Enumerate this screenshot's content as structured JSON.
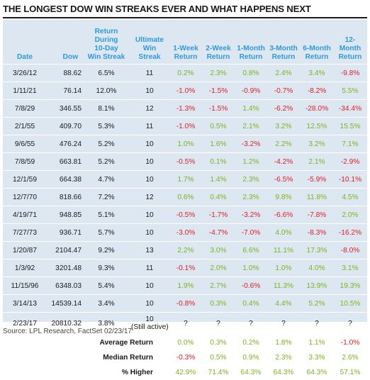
{
  "title": "THE LONGEST DOW WIN STREAKS EVER AND WHAT HAPPENS NEXT",
  "headers": {
    "date": "Date",
    "dow": "Dow",
    "return_during": [
      "Return",
      "During",
      "10-Day",
      "Win Streak"
    ],
    "ultimate": [
      "Ultimate",
      "Win",
      "Streak"
    ],
    "w1": [
      "1-Week",
      "Return"
    ],
    "w2": [
      "2-Week",
      "Return"
    ],
    "m1": [
      "1-Month",
      "Return"
    ],
    "m3": [
      "3-Month",
      "Return"
    ],
    "m6": [
      "6-Month",
      "Return"
    ],
    "m12": [
      "12-Month",
      "Return"
    ]
  },
  "rows": [
    {
      "date": "3/26/12",
      "dow": "88.62",
      "ret": "6.5%",
      "streak": "11",
      "w1": "0.2%",
      "w2": "2.3%",
      "m1": "0.8%",
      "m3": "2.4%",
      "m6": "3.4%",
      "m12": "-9.8%"
    },
    {
      "date": "1/11/21",
      "dow": "76.14",
      "ret": "12.0%",
      "streak": "10",
      "w1": "-1.0%",
      "w2": "-1.5%",
      "m1": "-0.9%",
      "m3": "-0.7%",
      "m6": "-8.2%",
      "m12": "5.5%"
    },
    {
      "date": "7/8/29",
      "dow": "346.55",
      "ret": "8.1%",
      "streak": "12",
      "w1": "-1.3%",
      "w2": "-1.5%",
      "m1": "1.4%",
      "m3": "-6.2%",
      "m6": "-28.0%",
      "m12": "-34.4%"
    },
    {
      "date": "2/1/55",
      "dow": "409.70",
      "ret": "5.3%",
      "streak": "11",
      "w1": "-1.0%",
      "w2": "0.5%",
      "m1": "2.1%",
      "m3": "3.2%",
      "m6": "12.5%",
      "m12": "15.5%"
    },
    {
      "date": "9/6/55",
      "dow": "476.24",
      "ret": "5.2%",
      "streak": "10",
      "w1": "1.0%",
      "w2": "1.6%",
      "m1": "-3.2%",
      "m3": "2.2%",
      "m6": "3.2%",
      "m12": "7.1%"
    },
    {
      "date": "7/8/59",
      "dow": "663.81",
      "ret": "5.2%",
      "streak": "10",
      "w1": "-0.5%",
      "w2": "0.1%",
      "m1": "1.2%",
      "m3": "-4.2%",
      "m6": "2.1%",
      "m12": "-2.9%"
    },
    {
      "date": "12/1/59",
      "dow": "664.38",
      "ret": "4.7%",
      "streak": "10",
      "w1": "1.7%",
      "w2": "1.4%",
      "m1": "2.3%",
      "m3": "-6.5%",
      "m6": "-5.9%",
      "m12": "-10.1%"
    },
    {
      "date": "12/7/70",
      "dow": "818.66",
      "ret": "7.2%",
      "streak": "12",
      "w1": "0.6%",
      "w2": "0.4%",
      "m1": "2.3%",
      "m3": "9.8%",
      "m6": "11.8%",
      "m12": "4.5%"
    },
    {
      "date": "4/19/71",
      "dow": "948.85",
      "ret": "5.1%",
      "streak": "10",
      "w1": "-0.5%",
      "w2": "-1.7%",
      "m1": "-3.2%",
      "m3": "-6.6%",
      "m6": "-7.8%",
      "m12": "2.0%"
    },
    {
      "date": "7/27/73",
      "dow": "936.71",
      "ret": "5.7%",
      "streak": "10",
      "w1": "-3.0%",
      "w2": "-4.7%",
      "m1": "-7.0%",
      "m3": "4.0%",
      "m6": "-8.3%",
      "m12": "-16.2%"
    },
    {
      "date": "1/20/87",
      "dow": "2104.47",
      "ret": "9.2%",
      "streak": "13",
      "w1": "2.2%",
      "w2": "3.0%",
      "m1": "6.6%",
      "m3": "11.1%",
      "m6": "17.3%",
      "m12": "-8.0%"
    },
    {
      "date": "1/3/92",
      "dow": "3201.48",
      "ret": "9.3%",
      "streak": "11",
      "w1": "-0.1%",
      "w2": "2.0%",
      "m1": "1.0%",
      "m3": "1.0%",
      "m6": "4.0%",
      "m12": "3.1%"
    },
    {
      "date": "11/15/96",
      "dow": "6348.03",
      "ret": "5.4%",
      "streak": "10",
      "w1": "1.9%",
      "w2": "2.7%",
      "m1": "-0.6%",
      "m3": "11.3%",
      "m6": "13.9%",
      "m12": "19.3%"
    },
    {
      "date": "3/14/13",
      "dow": "14539.14",
      "ret": "3.4%",
      "streak": "10",
      "w1": "-0.8%",
      "w2": "0.3%",
      "m1": "0.4%",
      "m3": "4.4%",
      "m6": "5.2%",
      "m12": "10.5%"
    },
    {
      "date": "2/23/17",
      "dow": "20810.32",
      "ret": "3.8%",
      "streak": "10",
      "streak_note": "(Still active)",
      "w1": "?",
      "w2": "?",
      "m1": "?",
      "m3": "?",
      "m6": "?",
      "m12": "?"
    }
  ],
  "summary": [
    {
      "label": "Average Return",
      "w1": "0.0%",
      "w2": "0.3%",
      "m1": "0.2%",
      "m3": "1.8%",
      "m6": "1.1%",
      "m12": "-1.0%"
    },
    {
      "label": "Median Return",
      "w1": "-0.3%",
      "w2": "0.5%",
      "m1": "0.9%",
      "m3": "2.3%",
      "m6": "3.3%",
      "m12": "2.6%"
    },
    {
      "label": "% Higher",
      "w1": "42.9%",
      "w2": "71.4%",
      "m1": "64.3%",
      "m3": "64.3%",
      "m6": "64.3%",
      "m12": "57.1%"
    }
  ],
  "source": "Source: LPL Research, FactSet   02/23/17",
  "colors": {
    "header": "#2e9ad9",
    "positive": "#7ab51d",
    "negative": "#e01e24",
    "background": "#dde7f2"
  }
}
